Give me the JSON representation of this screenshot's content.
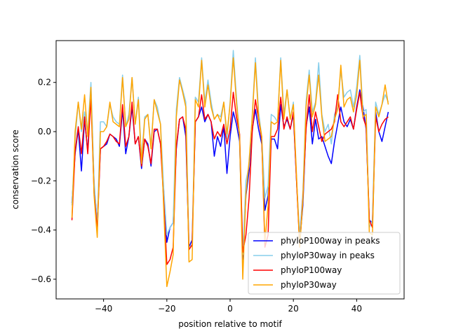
{
  "chart_data": {
    "type": "line",
    "title": "",
    "xlabel": "position relative to motif",
    "ylabel": "conservation score",
    "xlim": [
      -55,
      55
    ],
    "ylim": [
      -0.68,
      0.37
    ],
    "xticks": [
      -40,
      -20,
      0,
      20,
      40
    ],
    "yticks": [
      -0.6,
      -0.4,
      -0.2,
      0.0,
      0.2
    ],
    "xtick_labels": [
      "−40",
      "−20",
      "0",
      "20",
      "40"
    ],
    "ytick_labels": [
      "−0.6",
      "−0.4",
      "−0.2",
      "0.0",
      "0.2"
    ],
    "legend_position": "lower-right",
    "x": [
      -50,
      -49,
      -48,
      -47,
      -46,
      -45,
      -44,
      -43,
      -42,
      -41,
      -40,
      -39,
      -38,
      -37,
      -36,
      -35,
      -34,
      -33,
      -32,
      -31,
      -30,
      -29,
      -28,
      -27,
      -26,
      -25,
      -24,
      -23,
      -22,
      -21,
      -20,
      -19,
      -18,
      -17,
      -16,
      -15,
      -14,
      -13,
      -12,
      -11,
      -10,
      -9,
      -8,
      -7,
      -6,
      -5,
      -4,
      -3,
      -2,
      -1,
      0,
      1,
      2,
      3,
      4,
      5,
      6,
      7,
      8,
      9,
      10,
      11,
      12,
      13,
      14,
      15,
      16,
      17,
      18,
      19,
      20,
      21,
      22,
      23,
      24,
      25,
      26,
      27,
      28,
      29,
      30,
      31,
      32,
      33,
      34,
      35,
      36,
      37,
      38,
      39,
      40,
      41,
      42,
      43,
      44,
      45,
      46,
      47,
      48,
      49,
      50
    ],
    "series": [
      {
        "name": "phyloP100way in peaks",
        "color": "#0000ff",
        "values": [
          -0.29,
          -0.09,
          0.01,
          -0.16,
          0.05,
          -0.08,
          0.17,
          -0.22,
          -0.37,
          -0.07,
          -0.06,
          -0.05,
          -0.01,
          -0.02,
          -0.03,
          -0.06,
          0.09,
          -0.09,
          -0.02,
          0.1,
          -0.05,
          -0.02,
          -0.15,
          -0.03,
          -0.05,
          -0.14,
          0.0,
          0.01,
          -0.05,
          -0.24,
          -0.45,
          -0.39,
          -0.37,
          -0.07,
          0.05,
          0.06,
          -0.02,
          -0.47,
          -0.44,
          0.04,
          0.06,
          0.1,
          0.04,
          0.07,
          0.04,
          -0.1,
          -0.02,
          -0.06,
          0.02,
          -0.17,
          -0.02,
          0.08,
          0.03,
          -0.04,
          -0.52,
          -0.26,
          -0.16,
          0.01,
          0.09,
          0.01,
          -0.05,
          -0.32,
          -0.26,
          -0.03,
          -0.03,
          -0.07,
          0.11,
          0.02,
          0.05,
          0.01,
          0.07,
          -0.2,
          -0.45,
          -0.3,
          0.02,
          0.1,
          -0.05,
          0.05,
          -0.03,
          -0.02,
          -0.06,
          -0.1,
          -0.13,
          -0.04,
          0.03,
          0.1,
          0.04,
          0.02,
          0.05,
          0.01,
          0.1,
          0.17,
          0.1,
          0.01,
          -0.36,
          -0.37,
          0.08,
          0.0,
          -0.04,
          0.02,
          0.08
        ]
      },
      {
        "name": "phyloP30way in peaks",
        "color": "#87ceeb",
        "values": [
          -0.3,
          -0.03,
          0.12,
          0.0,
          0.08,
          0.0,
          0.2,
          -0.2,
          -0.38,
          0.04,
          0.04,
          0.02,
          0.11,
          0.06,
          0.04,
          0.03,
          0.23,
          0.02,
          0.07,
          0.22,
          0.03,
          0.14,
          -0.11,
          0.06,
          0.07,
          -0.06,
          0.13,
          0.1,
          0.03,
          -0.23,
          -0.42,
          -0.39,
          -0.37,
          0.09,
          0.22,
          0.17,
          0.12,
          -0.47,
          -0.46,
          0.14,
          0.12,
          0.3,
          0.12,
          0.21,
          0.12,
          0.05,
          0.07,
          0.06,
          0.12,
          -0.03,
          0.12,
          0.33,
          0.14,
          -0.02,
          -0.5,
          -0.2,
          -0.14,
          0.07,
          0.3,
          0.08,
          -0.02,
          -0.27,
          -0.22,
          0.07,
          0.06,
          0.04,
          0.3,
          0.07,
          0.17,
          0.05,
          0.12,
          -0.2,
          -0.42,
          -0.25,
          0.12,
          0.25,
          0.08,
          0.12,
          0.28,
          0.07,
          0.0,
          0.03,
          -0.05,
          0.07,
          0.1,
          0.25,
          0.14,
          0.16,
          0.17,
          0.1,
          0.18,
          0.31,
          0.08,
          0.09,
          -0.39,
          -0.36,
          0.12,
          0.07,
          0.11,
          0.15,
          0.12
        ]
      },
      {
        "name": "phyloP100way",
        "color": "#ff0000",
        "values": [
          -0.36,
          -0.08,
          0.02,
          -0.09,
          0.06,
          -0.09,
          0.14,
          -0.25,
          -0.4,
          -0.07,
          -0.06,
          -0.04,
          -0.01,
          -0.02,
          -0.04,
          -0.05,
          0.11,
          -0.06,
          -0.02,
          0.12,
          -0.05,
          -0.02,
          -0.14,
          -0.03,
          -0.06,
          -0.13,
          0.01,
          0.01,
          -0.05,
          -0.28,
          -0.54,
          -0.52,
          -0.47,
          -0.06,
          0.05,
          0.06,
          0.01,
          -0.48,
          -0.46,
          0.04,
          0.06,
          0.15,
          0.05,
          0.07,
          0.04,
          -0.03,
          0.0,
          -0.02,
          0.03,
          -0.05,
          0.01,
          0.16,
          0.06,
          -0.01,
          -0.49,
          -0.42,
          -0.27,
          0.0,
          0.13,
          0.05,
          -0.03,
          -0.47,
          -0.42,
          -0.02,
          -0.02,
          0.01,
          0.14,
          0.01,
          0.06,
          0.01,
          0.08,
          -0.2,
          -0.47,
          -0.27,
          0.01,
          0.15,
          0.0,
          0.08,
          0.02,
          -0.04,
          -0.01,
          0.0,
          0.01,
          0.04,
          0.15,
          0.04,
          0.02,
          0.04,
          0.06,
          0.01,
          0.09,
          0.16,
          0.06,
          0.02,
          -0.36,
          -0.39,
          0.06,
          0.0,
          0.03,
          0.05,
          0.06
        ]
      },
      {
        "name": "phyloP30way",
        "color": "#ffa500",
        "values": [
          -0.35,
          0.0,
          0.12,
          0.01,
          0.15,
          -0.02,
          0.18,
          -0.26,
          -0.43,
          0.0,
          0.0,
          0.02,
          0.12,
          0.04,
          0.03,
          0.02,
          0.22,
          0.02,
          0.05,
          0.22,
          0.03,
          0.13,
          -0.13,
          0.05,
          0.07,
          -0.07,
          0.13,
          0.08,
          0.03,
          -0.31,
          -0.63,
          -0.57,
          -0.5,
          0.06,
          0.21,
          0.16,
          0.1,
          -0.53,
          -0.52,
          0.13,
          0.1,
          0.29,
          0.1,
          0.19,
          0.1,
          0.05,
          0.07,
          0.04,
          0.12,
          -0.01,
          0.11,
          0.3,
          0.12,
          -0.02,
          -0.6,
          -0.25,
          -0.12,
          0.06,
          0.28,
          0.06,
          -0.02,
          -0.45,
          -0.3,
          0.04,
          0.03,
          0.04,
          0.29,
          0.05,
          0.17,
          0.05,
          0.11,
          -0.18,
          -0.47,
          -0.28,
          0.1,
          0.23,
          0.06,
          0.11,
          0.23,
          0.06,
          -0.04,
          -0.03,
          -0.02,
          0.05,
          0.09,
          0.27,
          0.1,
          0.13,
          0.14,
          0.08,
          0.15,
          0.29,
          0.06,
          0.07,
          -0.41,
          -0.42,
          0.1,
          0.06,
          0.11,
          0.19,
          0.11
        ]
      }
    ]
  }
}
